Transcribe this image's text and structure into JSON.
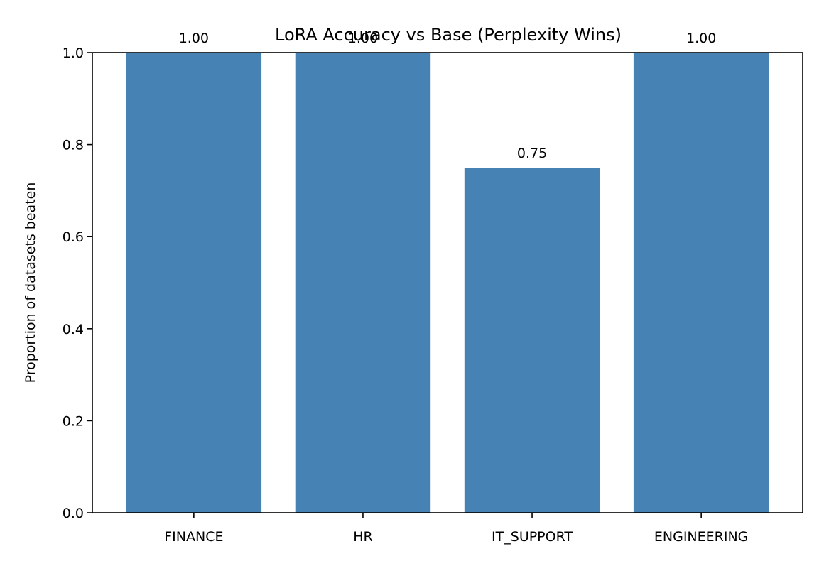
{
  "chart_data": {
    "type": "bar",
    "title": "LoRA Accuracy vs Base (Perplexity Wins)",
    "xlabel": "",
    "ylabel": "Proportion of datasets beaten",
    "categories": [
      "FINANCE",
      "HR",
      "IT_SUPPORT",
      "ENGINEERING"
    ],
    "values": [
      1.0,
      1.0,
      0.75,
      1.0
    ],
    "value_labels": [
      "1.00",
      "1.00",
      "0.75",
      "1.00"
    ],
    "ylim": [
      0,
      1.0
    ],
    "yticks": [
      0.0,
      0.2,
      0.4,
      0.6,
      0.8,
      1.0
    ],
    "ytick_labels": [
      "0.0",
      "0.2",
      "0.4",
      "0.6",
      "0.8",
      "1.0"
    ],
    "bar_color": "#4682b4",
    "grid": false,
    "legend": "none"
  }
}
